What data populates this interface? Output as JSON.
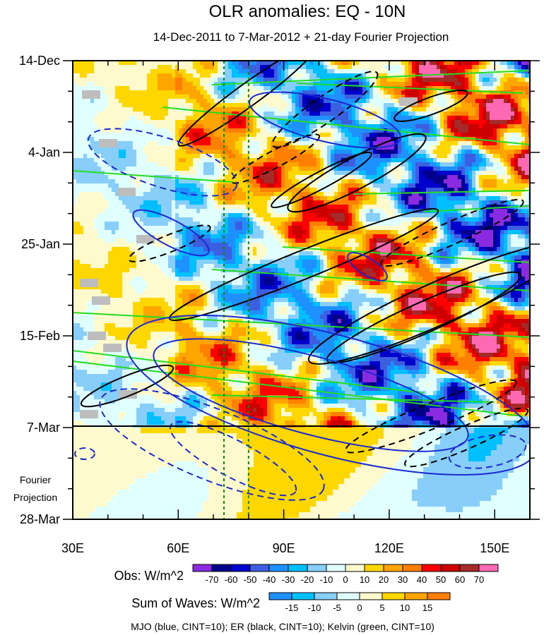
{
  "chart_data": {
    "type": "heatmap",
    "title": "OLR anomalies: EQ - 10N",
    "subtitle": "14-Dec-2011 to 7-Mar-2012 + 21-day Fourier Projection",
    "x_ticks": [
      {
        "value": 30,
        "label": "30E"
      },
      {
        "value": 60,
        "label": "60E"
      },
      {
        "value": 90,
        "label": "90E"
      },
      {
        "value": 120,
        "label": "120E"
      },
      {
        "value": 150,
        "label": "150E"
      }
    ],
    "xlim": [
      30,
      160
    ],
    "y_ticks": [
      {
        "day": 0,
        "label": "14-Dec"
      },
      {
        "day": 21,
        "label": "4-Jan"
      },
      {
        "day": 42,
        "label": "25-Jan"
      },
      {
        "day": 63,
        "label": "15-Feb"
      },
      {
        "day": 84,
        "label": "7-Mar"
      },
      {
        "day": 105,
        "label": "28-Mar"
      }
    ],
    "ylim_days": [
      0,
      105
    ],
    "observation_end_day": 84,
    "reference_longitudes": [
      73,
      80
    ],
    "projection_label_line1": "Fourier",
    "projection_label_line2": "Projection",
    "obs_colorbar": {
      "label": "Obs: W/m^2",
      "levels": [
        "-70",
        "-60",
        "-50",
        "-40",
        "-30",
        "-20",
        "-10",
        "0",
        "10",
        "20",
        "30",
        "40",
        "50",
        "60",
        "70"
      ],
      "colors": [
        "#8a2be2",
        "#00008b",
        "#0000cd",
        "#3c5fe0",
        "#1e90ff",
        "#00bfff",
        "#87cefa",
        "#e0ffff",
        "#fffacd",
        "#ffd700",
        "#ffa500",
        "#ff7f00",
        "#ff0000",
        "#cd0000",
        "#a52a2a",
        "#ff69b4"
      ]
    },
    "waves_colorbar": {
      "label": "Sum of Waves: W/m^2",
      "levels": [
        "-15",
        "-10",
        "-5",
        "0",
        "5",
        "10",
        "15"
      ],
      "colors": [
        "#1e90ff",
        "#00bfff",
        "#87cefa",
        "#e0ffff",
        "#fffacd",
        "#ffd700",
        "#ffa500",
        "#ff7f00"
      ]
    },
    "footer": "MJO (blue, CINT=10); ER (black, CINT=10); Kelvin (green, CINT=10)",
    "colors": {
      "mjo": "#1a2ad0",
      "er": "#000000",
      "kelvin": "#22dd22",
      "reference_line": "#0a8a0a",
      "missing": "#bdbdbd"
    }
  }
}
